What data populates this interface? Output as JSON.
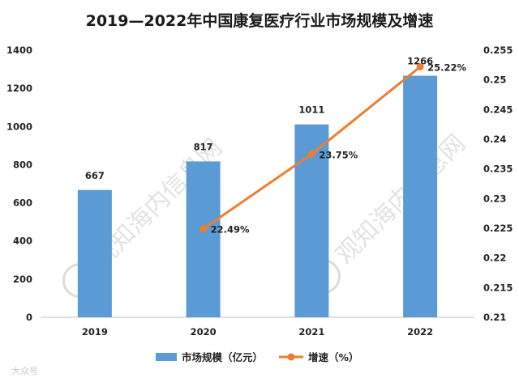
{
  "chart_data": {
    "type": "bar",
    "title": "2019—2022年中国康复医疗行业市场规模及增速",
    "categories": [
      "2019",
      "2020",
      "2021",
      "2022"
    ],
    "series": [
      {
        "name": "市场规模（亿元）",
        "type": "bar",
        "axis": "left",
        "color": "#5B9BD5",
        "values": [
          667,
          817,
          1011,
          1266
        ],
        "data_labels": [
          "667",
          "817",
          "1011",
          "1266"
        ]
      },
      {
        "name": "增速（%）",
        "type": "line",
        "axis": "right",
        "color": "#ED7D31",
        "x": [
          "2020",
          "2021",
          "2022"
        ],
        "values": [
          0.2249,
          0.2375,
          0.2522
        ],
        "data_labels": [
          "22.49%",
          "23.75%",
          "25.22%"
        ]
      }
    ],
    "y_left": {
      "ylim": [
        0,
        1400
      ],
      "ticks": [
        0,
        200,
        400,
        600,
        800,
        1000,
        1200,
        1400
      ],
      "tick_labels": [
        "0",
        "200",
        "400",
        "600",
        "800",
        "1000",
        "1200",
        "1400"
      ]
    },
    "y_right": {
      "ylim": [
        0.21,
        0.255
      ],
      "ticks": [
        0.21,
        0.215,
        0.22,
        0.225,
        0.23,
        0.235,
        0.24,
        0.245,
        0.25,
        0.255
      ],
      "tick_labels": [
        "0.21",
        "0.215",
        "0.22",
        "0.225",
        "0.23",
        "0.235",
        "0.24",
        "0.245",
        "0.25",
        "0.255"
      ]
    },
    "grid": false,
    "legend": "bottom",
    "watermarks": [
      "观知海内信息网",
      "观知海内信息网"
    ],
    "corner_watermark": "大众号"
  }
}
